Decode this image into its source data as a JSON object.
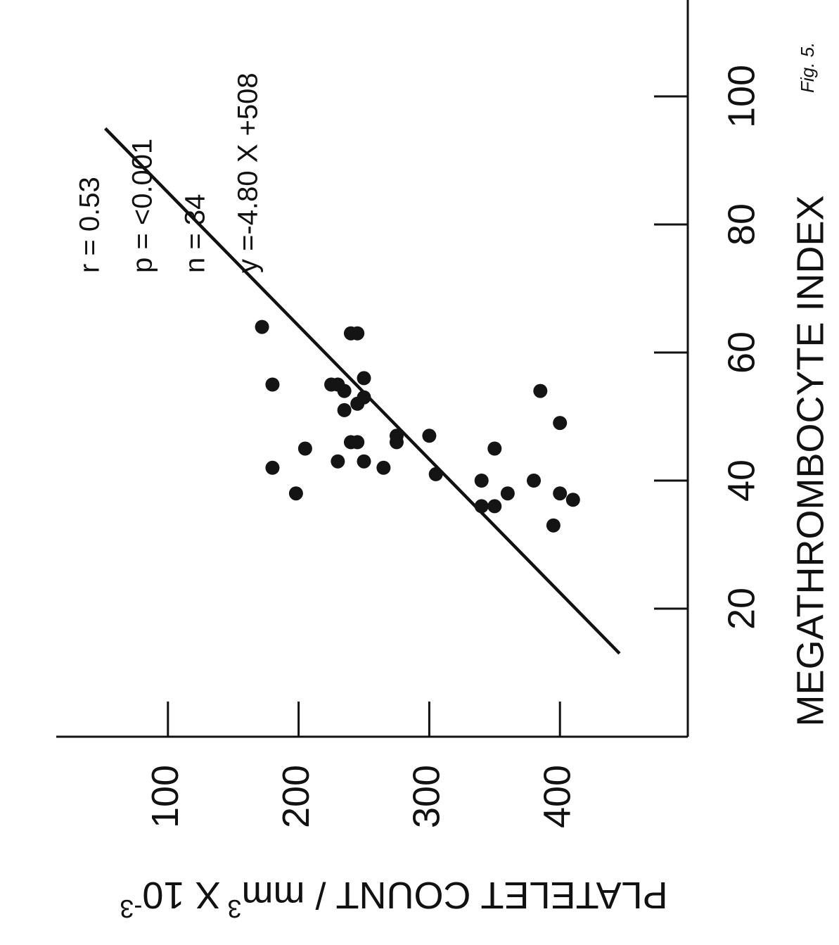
{
  "chart_data": {
    "type": "scatter",
    "title": "",
    "xlabel": "MEGATHROMBOCYTE INDEX",
    "ylabel": "PLATELET COUNT / mm",
    "ylabel_sup": "3",
    "ylabel_tail": "X 10",
    "ylabel_exp": "-3",
    "xlim": [
      0,
      115
    ],
    "ylim": [
      0,
      480
    ],
    "x_ticks": [
      20,
      40,
      60,
      80,
      100
    ],
    "y_ticks": [
      100,
      200,
      300,
      400
    ],
    "x_tick_labels": [
      "20",
      "40",
      "60",
      "80",
      "100"
    ],
    "y_tick_labels": [
      "100",
      "200",
      "300",
      "400"
    ],
    "grid": false,
    "points": [
      {
        "x": 33,
        "y": 395
      },
      {
        "x": 37,
        "y": 410
      },
      {
        "x": 38,
        "y": 400
      },
      {
        "x": 40,
        "y": 380
      },
      {
        "x": 38,
        "y": 360
      },
      {
        "x": 36,
        "y": 350
      },
      {
        "x": 36,
        "y": 340
      },
      {
        "x": 40,
        "y": 340
      },
      {
        "x": 41,
        "y": 305
      },
      {
        "x": 49,
        "y": 400
      },
      {
        "x": 54,
        "y": 385
      },
      {
        "x": 45,
        "y": 350
      },
      {
        "x": 47,
        "y": 300
      },
      {
        "x": 46,
        "y": 275
      },
      {
        "x": 47,
        "y": 275
      },
      {
        "x": 42,
        "y": 265
      },
      {
        "x": 43,
        "y": 250
      },
      {
        "x": 46,
        "y": 245
      },
      {
        "x": 52,
        "y": 245
      },
      {
        "x": 53,
        "y": 250
      },
      {
        "x": 56,
        "y": 250
      },
      {
        "x": 63,
        "y": 245
      },
      {
        "x": 63,
        "y": 240
      },
      {
        "x": 51,
        "y": 235
      },
      {
        "x": 54,
        "y": 235
      },
      {
        "x": 55,
        "y": 230
      },
      {
        "x": 55,
        "y": 225
      },
      {
        "x": 46,
        "y": 240
      },
      {
        "x": 43,
        "y": 230
      },
      {
        "x": 45,
        "y": 205
      },
      {
        "x": 38,
        "y": 198
      },
      {
        "x": 42,
        "y": 180
      },
      {
        "x": 55,
        "y": 180
      },
      {
        "x": 64,
        "y": 172
      }
    ],
    "fit_line": {
      "slope": -4.8,
      "intercept": 508,
      "x_start": 13,
      "x_end": 95
    },
    "annotations": [
      "r = 0.53",
      "p = <0.001",
      "n = 34",
      "y =-4.80 X +508"
    ],
    "corner_note": "Fig. 5."
  }
}
